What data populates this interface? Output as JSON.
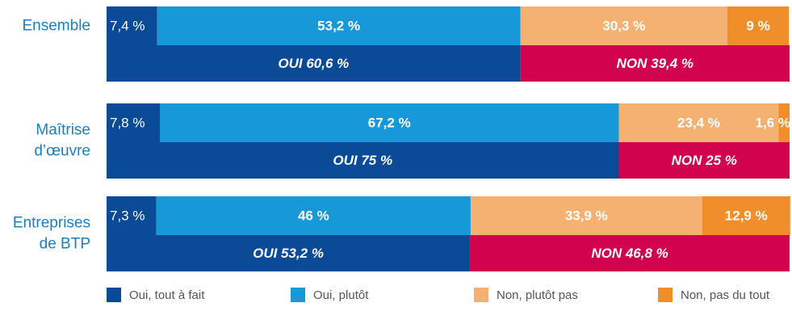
{
  "chart_data": {
    "type": "stacked-bar-horizontal",
    "categories": [
      [
        "Ensemble"
      ],
      [
        "Maîtrise",
        "d’œuvre"
      ],
      [
        "Entreprises",
        "de BTP"
      ]
    ],
    "xlim": [
      0,
      100
    ],
    "series": [
      {
        "name": "Oui, tout à fait",
        "color": "#0b4a97",
        "values": [
          7.4,
          7.8,
          7.3
        ],
        "value_labels": [
          "7,4 %",
          "7,8 %",
          "7,3 %"
        ]
      },
      {
        "name": "Oui, plutôt",
        "color": "#1798d8",
        "values": [
          53.2,
          67.2,
          46
        ],
        "value_labels": [
          "53,2 %",
          "67,2 %",
          "46 %"
        ]
      },
      {
        "name": "Non, plutôt pas",
        "color": "#f5b171",
        "values": [
          30.3,
          23.4,
          33.9
        ],
        "value_labels": [
          "30,3 %",
          "23,4 %",
          "33,9 %"
        ]
      },
      {
        "name": "Non, pas du tout",
        "color": "#f08e2b",
        "values": [
          9,
          1.6,
          12.9
        ],
        "value_labels": [
          "9 %",
          "1,6 %",
          "12,9 %"
        ]
      }
    ],
    "totals": [
      {
        "name": "OUI",
        "color": "#0b4a97",
        "values": [
          60.6,
          75,
          53.2
        ],
        "value_labels": [
          "OUI  60,6 %",
          "OUI  75 %",
          "OUI  53,2 %"
        ]
      },
      {
        "name": "NON",
        "color": "#d1034f",
        "values": [
          39.4,
          25,
          46.8
        ],
        "value_labels": [
          "NON  39,4 %",
          "NON  25 %",
          "NON  46,8 %"
        ]
      }
    ]
  }
}
